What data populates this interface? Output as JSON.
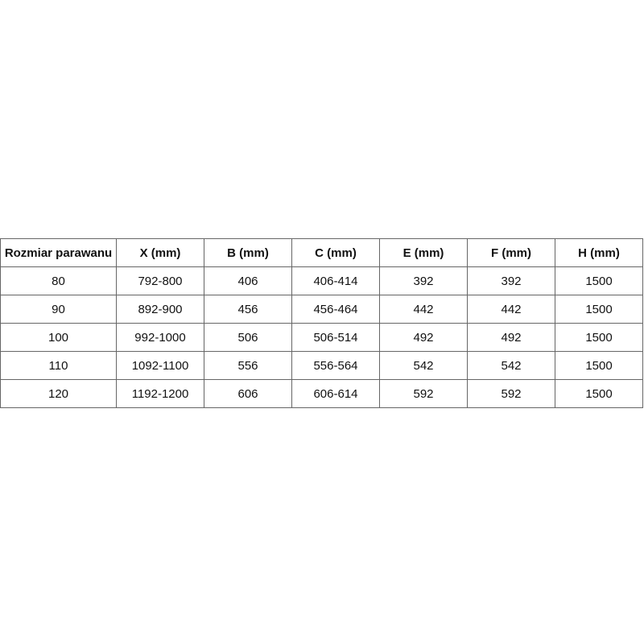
{
  "table": {
    "headers": [
      "Rozmiar parawanu",
      "X (mm)",
      "B (mm)",
      "C (mm)",
      "E (mm)",
      "F (mm)",
      "H (mm)"
    ],
    "rows": [
      [
        "80",
        "792-800",
        "406",
        "406-414",
        "392",
        "392",
        "1500"
      ],
      [
        "90",
        "892-900",
        "456",
        "456-464",
        "442",
        "442",
        "1500"
      ],
      [
        "100",
        "992-1000",
        "506",
        "506-514",
        "492",
        "492",
        "1500"
      ],
      [
        "110",
        "1092-1100",
        "556",
        "556-564",
        "542",
        "542",
        "1500"
      ],
      [
        "120",
        "1192-1200",
        "606",
        "606-614",
        "592",
        "592",
        "1500"
      ]
    ]
  }
}
